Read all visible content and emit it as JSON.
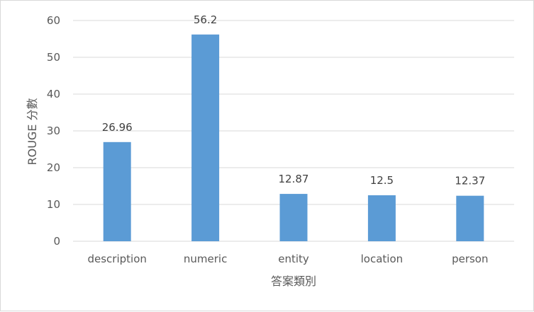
{
  "chart_data": {
    "type": "bar",
    "categories": [
      "description",
      "numeric",
      "entity",
      "location",
      "person"
    ],
    "values": [
      26.96,
      56.2,
      12.87,
      12.5,
      12.37
    ],
    "data_labels": [
      "26.96",
      "56.2",
      "12.87",
      "12.5",
      "12.37"
    ],
    "xlabel": "答案類別",
    "ylabel": "ROUGE 分數",
    "ylim": [
      0,
      60
    ],
    "yticks": [
      "0",
      "10",
      "20",
      "30",
      "40",
      "50",
      "60"
    ],
    "grid": true,
    "legend": "none",
    "bar_color": "#5b9bd5"
  }
}
